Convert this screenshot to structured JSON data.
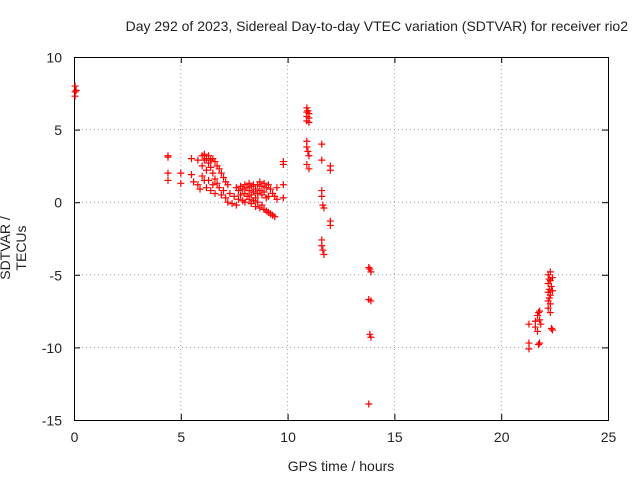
{
  "chart_data": {
    "type": "scatter",
    "title": "Day 292 of 2023, Sidereal Day-to-day VTEC variation (SDTVAR) for receiver rio2",
    "xlabel": "GPS time / hours",
    "ylabel": "SDTVAR / TECUs",
    "xlim": [
      0,
      25
    ],
    "ylim": [
      -15,
      10
    ],
    "xticks": [
      0,
      5,
      10,
      15,
      20,
      25
    ],
    "yticks": [
      -15,
      -10,
      -5,
      0,
      5,
      10
    ],
    "grid": true,
    "marker": "+",
    "color": "#ff0000",
    "series": [
      {
        "name": "SDTVAR",
        "points": [
          [
            0.05,
            8.0
          ],
          [
            0.05,
            7.6
          ],
          [
            0.05,
            7.3
          ],
          [
            0.1,
            7.7
          ],
          [
            4.4,
            3.2
          ],
          [
            4.4,
            3.1
          ],
          [
            4.4,
            2.0
          ],
          [
            4.4,
            1.5
          ],
          [
            5.0,
            2.0
          ],
          [
            5.0,
            1.3
          ],
          [
            5.5,
            3.0
          ],
          [
            5.5,
            1.9
          ],
          [
            5.6,
            1.4
          ],
          [
            5.8,
            2.9
          ],
          [
            5.8,
            1.2
          ],
          [
            5.9,
            0.9
          ],
          [
            6.0,
            3.2
          ],
          [
            6.0,
            2.5
          ],
          [
            6.0,
            1.8
          ],
          [
            6.1,
            3.3
          ],
          [
            6.1,
            2.9
          ],
          [
            6.1,
            1.5
          ],
          [
            6.2,
            3.0
          ],
          [
            6.2,
            2.2
          ],
          [
            6.2,
            1.0
          ],
          [
            6.3,
            3.2
          ],
          [
            6.3,
            2.7
          ],
          [
            6.3,
            1.5
          ],
          [
            6.4,
            2.9
          ],
          [
            6.4,
            2.4
          ],
          [
            6.4,
            0.8
          ],
          [
            6.5,
            3.0
          ],
          [
            6.5,
            2.0
          ],
          [
            6.5,
            1.2
          ],
          [
            6.6,
            2.8
          ],
          [
            6.6,
            1.6
          ],
          [
            6.6,
            0.6
          ],
          [
            6.7,
            2.5
          ],
          [
            6.7,
            1.3
          ],
          [
            6.8,
            2.3
          ],
          [
            6.8,
            1.0
          ],
          [
            6.9,
            2.0
          ],
          [
            6.9,
            0.5
          ],
          [
            7.0,
            1.7
          ],
          [
            7.0,
            0.8
          ],
          [
            7.1,
            1.4
          ],
          [
            7.1,
            0.3
          ],
          [
            7.2,
            1.2
          ],
          [
            7.2,
            0.0
          ],
          [
            7.3,
            0.6
          ],
          [
            7.4,
            -0.1
          ],
          [
            7.5,
            0.4
          ],
          [
            7.6,
            1.0
          ],
          [
            7.6,
            -0.2
          ],
          [
            7.7,
            0.8
          ],
          [
            7.7,
            0.2
          ],
          [
            7.8,
            1.1
          ],
          [
            7.8,
            0.5
          ],
          [
            7.9,
            0.9
          ],
          [
            7.9,
            0.1
          ],
          [
            8.0,
            1.2
          ],
          [
            8.0,
            0.6
          ],
          [
            8.0,
            0.0
          ],
          [
            8.1,
            1.0
          ],
          [
            8.1,
            0.4
          ],
          [
            8.2,
            1.3
          ],
          [
            8.2,
            0.8
          ],
          [
            8.2,
            0.2
          ],
          [
            8.3,
            1.1
          ],
          [
            8.3,
            0.5
          ],
          [
            8.3,
            -0.1
          ],
          [
            8.4,
            1.2
          ],
          [
            8.4,
            0.7
          ],
          [
            8.4,
            0.1
          ],
          [
            8.5,
            0.9
          ],
          [
            8.5,
            0.3
          ],
          [
            8.5,
            -0.3
          ],
          [
            8.6,
            1.2
          ],
          [
            8.6,
            0.6
          ],
          [
            8.6,
            0.0
          ],
          [
            8.7,
            1.4
          ],
          [
            8.7,
            0.8
          ],
          [
            8.7,
            -0.4
          ],
          [
            8.8,
            1.1
          ],
          [
            8.8,
            0.5
          ],
          [
            8.8,
            -0.2
          ],
          [
            8.9,
            1.3
          ],
          [
            8.9,
            0.7
          ],
          [
            8.9,
            -0.5
          ],
          [
            9.0,
            1.0
          ],
          [
            9.0,
            0.3
          ],
          [
            9.0,
            -0.6
          ],
          [
            9.1,
            1.2
          ],
          [
            9.1,
            0.4
          ],
          [
            9.1,
            -0.7
          ],
          [
            9.2,
            0.9
          ],
          [
            9.2,
            -0.8
          ],
          [
            9.3,
            0.6
          ],
          [
            9.3,
            -0.9
          ],
          [
            9.4,
            0.4
          ],
          [
            9.4,
            -1.0
          ],
          [
            9.5,
            0.2
          ],
          [
            9.5,
            1.0
          ],
          [
            9.8,
            2.8
          ],
          [
            9.8,
            2.6
          ],
          [
            9.8,
            1.2
          ],
          [
            9.8,
            0.3
          ],
          [
            10.9,
            6.5
          ],
          [
            10.9,
            6.2
          ],
          [
            10.9,
            5.9
          ],
          [
            10.9,
            5.6
          ],
          [
            10.95,
            6.3
          ],
          [
            11.0,
            6.1
          ],
          [
            11.0,
            5.8
          ],
          [
            11.0,
            5.5
          ],
          [
            10.9,
            4.2
          ],
          [
            10.9,
            3.8
          ],
          [
            10.95,
            3.5
          ],
          [
            11.0,
            3.2
          ],
          [
            10.9,
            2.6
          ],
          [
            11.0,
            2.3
          ],
          [
            11.6,
            4.0
          ],
          [
            11.6,
            2.9
          ],
          [
            11.6,
            0.8
          ],
          [
            11.6,
            0.4
          ],
          [
            11.65,
            -0.2
          ],
          [
            11.7,
            -0.4
          ],
          [
            11.6,
            -2.6
          ],
          [
            11.6,
            -3.0
          ],
          [
            11.65,
            -3.3
          ],
          [
            11.7,
            -3.6
          ],
          [
            12.0,
            2.5
          ],
          [
            12.0,
            2.2
          ],
          [
            12.0,
            -1.3
          ],
          [
            12.0,
            -1.6
          ],
          [
            13.8,
            -4.5
          ],
          [
            13.85,
            -4.6
          ],
          [
            13.9,
            -4.8
          ],
          [
            13.8,
            -6.7
          ],
          [
            13.9,
            -6.8
          ],
          [
            13.85,
            -9.1
          ],
          [
            13.9,
            -9.3
          ],
          [
            13.8,
            -13.9
          ],
          [
            21.3,
            -8.4
          ],
          [
            21.3,
            -9.7
          ],
          [
            21.3,
            -10.1
          ],
          [
            21.6,
            -8.2
          ],
          [
            21.6,
            -8.6
          ],
          [
            21.7,
            -7.8
          ],
          [
            21.7,
            -8.9
          ],
          [
            21.75,
            -7.6
          ],
          [
            21.75,
            -9.8
          ],
          [
            21.8,
            -7.5
          ],
          [
            21.8,
            -8.1
          ],
          [
            21.8,
            -9.7
          ],
          [
            21.85,
            -8.4
          ],
          [
            22.2,
            -5.0
          ],
          [
            22.2,
            -5.6
          ],
          [
            22.2,
            -6.2
          ],
          [
            22.2,
            -6.8
          ],
          [
            22.2,
            -7.3
          ],
          [
            22.25,
            -5.3
          ],
          [
            22.25,
            -6.0
          ],
          [
            22.25,
            -6.6
          ],
          [
            22.3,
            -4.8
          ],
          [
            22.3,
            -5.4
          ],
          [
            22.3,
            -6.4
          ],
          [
            22.3,
            -7.0
          ],
          [
            22.3,
            -7.6
          ],
          [
            22.35,
            -5.8
          ],
          [
            22.35,
            -8.7
          ],
          [
            22.4,
            -5.2
          ],
          [
            22.4,
            -6.1
          ],
          [
            22.4,
            -8.8
          ]
        ]
      }
    ]
  }
}
